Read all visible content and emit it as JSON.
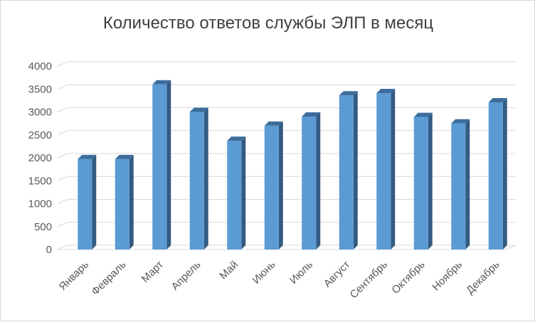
{
  "chart_data": {
    "type": "bar",
    "title": "Количество ответов службы ЭЛП в месяц",
    "categories": [
      "Январь",
      "Февраль",
      "Март",
      "Апрель",
      "Май",
      "Июнь",
      "Июль",
      "Август",
      "Сентябрь",
      "Октябрь",
      "Ноябрь",
      "Декабрь"
    ],
    "values": [
      1970,
      1970,
      3600,
      3000,
      2370,
      2700,
      2900,
      3360,
      3410,
      2890,
      2750,
      3210
    ],
    "ylim": [
      0,
      4000
    ],
    "yticks": [
      "0",
      "500",
      "1000",
      "1500",
      "2000",
      "2500",
      "3000",
      "3500",
      "4000"
    ],
    "xlabel": "",
    "ylabel": "",
    "grid": true,
    "style": "3d-column",
    "colors": {
      "bar_front": "#5b9bd5",
      "bar_side": "#335b82",
      "bar_top": "#3c6d9c",
      "grid": "#d9d9d9"
    }
  }
}
